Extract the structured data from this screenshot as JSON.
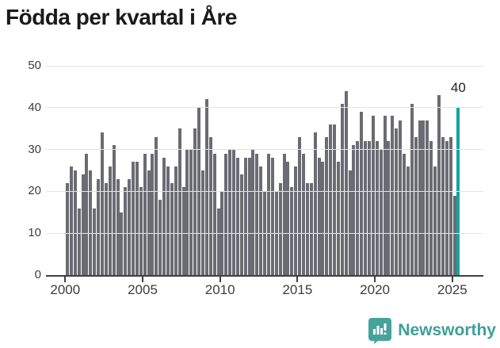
{
  "title": "Födda per kvartal i Åre",
  "chart_data": {
    "type": "bar",
    "title": "Födda per kvartal i Åre",
    "x_start": "2000-Q1",
    "x_end": "2025-Q2",
    "ylim": [
      0,
      50
    ],
    "y_tick_labels": [
      "0",
      "10",
      "20",
      "30",
      "40",
      "50"
    ],
    "x_tick_labels": [
      "2000",
      "2005",
      "2010",
      "2015",
      "2020",
      "2025"
    ],
    "grid": true,
    "values": [
      22,
      26,
      25,
      16,
      24,
      29,
      25,
      16,
      23,
      34,
      22,
      26,
      31,
      23,
      15,
      21,
      23,
      27,
      27,
      21,
      29,
      25,
      29,
      33,
      18,
      28,
      26,
      22,
      26,
      35,
      21,
      30,
      30,
      35,
      40,
      25,
      42,
      33,
      29,
      16,
      20,
      29,
      30,
      30,
      28,
      24,
      28,
      28,
      30,
      29,
      26,
      20,
      29,
      28,
      20,
      22,
      29,
      27,
      21,
      26,
      33,
      29,
      22,
      22,
      34,
      28,
      27,
      33,
      36,
      36,
      27,
      41,
      44,
      25,
      31,
      32,
      39,
      32,
      32,
      38,
      32,
      30,
      38,
      32,
      38,
      35,
      37,
      29,
      26,
      41,
      33,
      37,
      37,
      37,
      32,
      26,
      43,
      33,
      32,
      33,
      19,
      40
    ],
    "highlight_last_bar": true,
    "last_bar_label": "40",
    "bar_color": "#6b6b73",
    "highlight_color": "#16a2a2"
  },
  "footer": {
    "brand": "Newsworthy",
    "logo_icon": "bar-chart-speech-bubble-icon",
    "brand_color": "#3f9f99"
  }
}
